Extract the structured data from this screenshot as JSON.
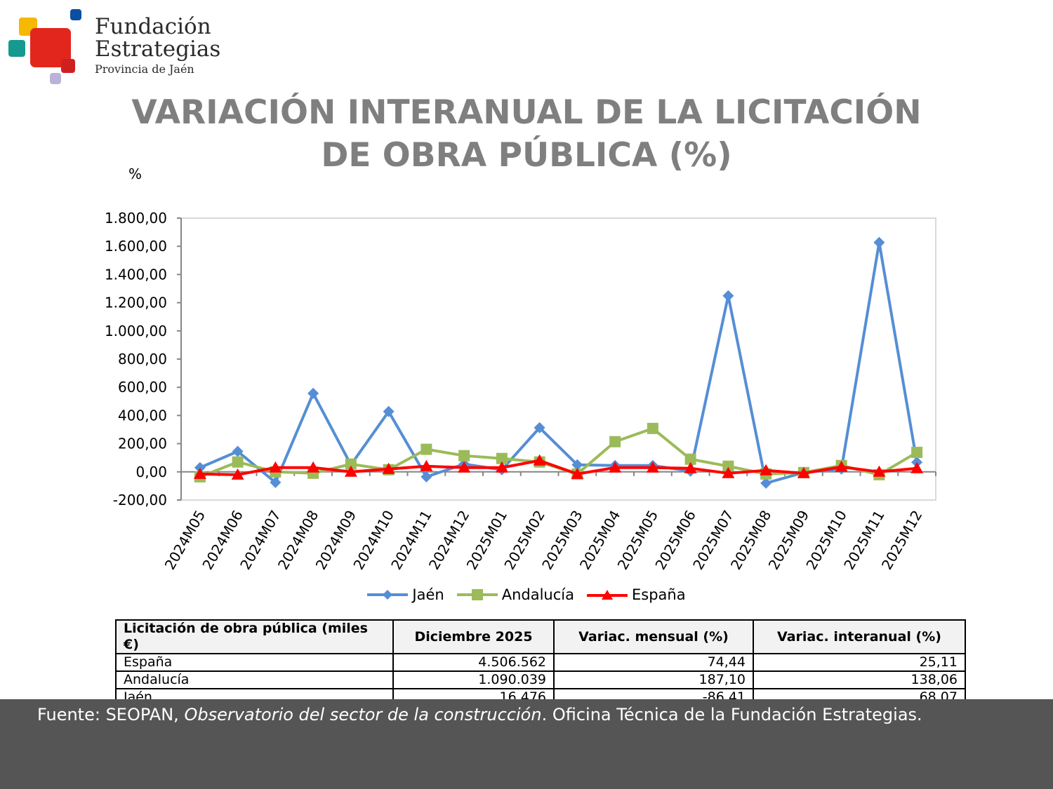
{
  "logo": {
    "line1": "Fundación",
    "line2": "Estrategias",
    "line3": "Provincia de Jaén"
  },
  "title_line1": "VARIACIÓN INTERANUAL DE LA LICITACIÓN",
  "title_line2": "DE OBRA PÚBLICA (%)",
  "chart_data": {
    "type": "line",
    "ylabel": "%",
    "ylim": [
      -200,
      1800
    ],
    "yticks": [
      "1.800,00",
      "1.600,00",
      "1.400,00",
      "1.200,00",
      "1.000,00",
      "800,00",
      "600,00",
      "400,00",
      "200,00",
      "0,00",
      "-200,00"
    ],
    "ytick_values": [
      1800,
      1600,
      1400,
      1200,
      1000,
      800,
      600,
      400,
      200,
      0,
      -200
    ],
    "categories": [
      "2024M05",
      "2024M06",
      "2024M07",
      "2024M08",
      "2024M09",
      "2024M10",
      "2024M11",
      "2024M12",
      "2025M01",
      "2025M02",
      "2025M03",
      "2025M04",
      "2025M05",
      "2025M06",
      "2025M07",
      "2025M08",
      "2025M09",
      "2025M10",
      "2025M11",
      "2025M12"
    ],
    "legend_position": "bottom",
    "grid": false,
    "series": [
      {
        "name": "Jaén",
        "color": "#558ed5",
        "marker": "diamond",
        "values": [
          30,
          145,
          -75,
          557,
          50,
          428,
          -35,
          55,
          15,
          313,
          50,
          45,
          45,
          5,
          1249,
          -80,
          -5,
          20,
          1627,
          68.07
        ]
      },
      {
        "name": "Andalucía",
        "color": "#9bbb59",
        "marker": "square",
        "values": [
          -35,
          70,
          0,
          -10,
          55,
          15,
          160,
          115,
          95,
          70,
          -15,
          214,
          308,
          90,
          40,
          -15,
          -5,
          45,
          -20,
          138.06
        ]
      },
      {
        "name": "España",
        "color": "#ff0000",
        "marker": "triangle",
        "values": [
          -15,
          -20,
          30,
          30,
          0,
          20,
          40,
          30,
          30,
          80,
          -15,
          30,
          30,
          25,
          -10,
          10,
          -10,
          35,
          0,
          25.11
        ]
      }
    ]
  },
  "table": {
    "headers": [
      "Licitación de obra pública (miles €)",
      "Diciembre 2025",
      "Variac. mensual (%)",
      "Variac. interanual (%)"
    ],
    "rows": [
      [
        "España",
        "4.506.562",
        "74,44",
        "25,11"
      ],
      [
        "Andalucía",
        "1.090.039",
        "187,10",
        "138,06"
      ],
      [
        "Jaén",
        "16.476",
        "-86,41",
        "68,07"
      ]
    ]
  },
  "footer": {
    "prefix": "Fuente: SEOPAN, ",
    "italic": "Observatorio del sector de la construcción",
    "suffix": ". Oficina Técnica de la Fundación Estrategias."
  }
}
